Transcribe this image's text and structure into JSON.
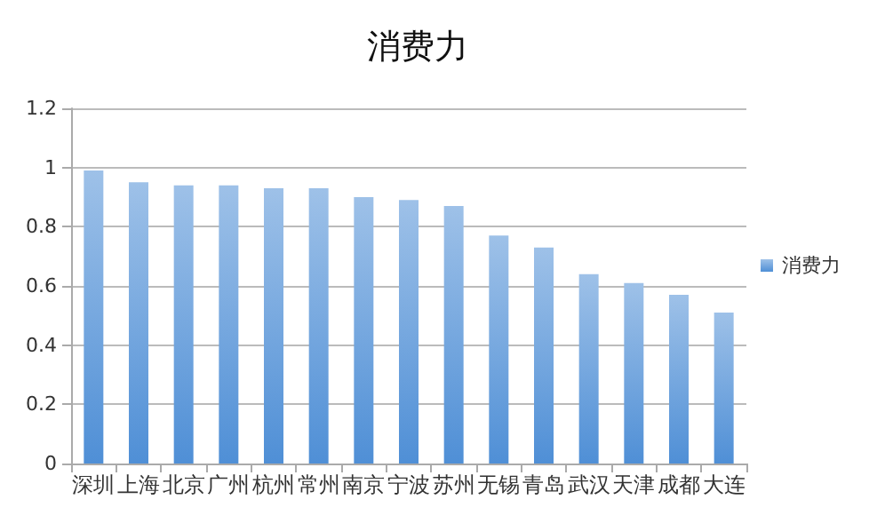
{
  "chart_data": {
    "type": "bar",
    "title": "消费力",
    "categories": [
      "深圳",
      "上海",
      "北京",
      "广州",
      "杭州",
      "常州",
      "南京",
      "宁波",
      "苏州",
      "无锡",
      "青岛",
      "武汉",
      "天津",
      "成都",
      "大连"
    ],
    "series": [
      {
        "name": "消费力",
        "color": "#4f8fd6",
        "values": [
          0.99,
          0.95,
          0.94,
          0.94,
          0.93,
          0.93,
          0.9,
          0.89,
          0.87,
          0.77,
          0.73,
          0.64,
          0.61,
          0.57,
          0.51
        ]
      }
    ],
    "ylim": [
      0,
      1.2
    ],
    "yticks": [
      0,
      0.2,
      0.4,
      0.6,
      0.8,
      1,
      1.2
    ],
    "grid": "y",
    "legend": "right"
  }
}
